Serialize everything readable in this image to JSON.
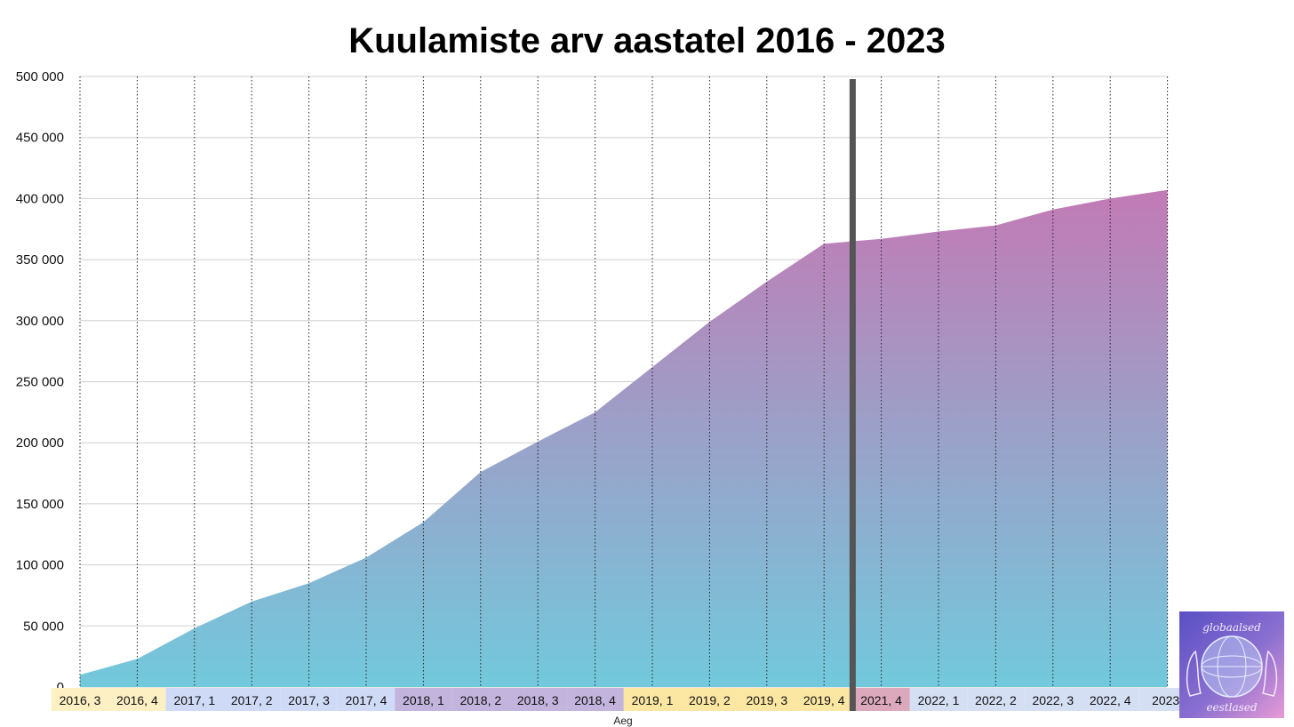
{
  "chart_data": {
    "type": "area",
    "title": "Kuulamiste arv aastatel 2016 - 2023",
    "xlabel": "Aeg",
    "ylabel": "",
    "ylim": [
      0,
      500000
    ],
    "y_ticks": [
      "0",
      "50 000",
      "100 000",
      "150 000",
      "200 000",
      "250 000",
      "300 000",
      "350 000",
      "400 000",
      "450 000",
      "500 000"
    ],
    "categories": [
      "2016, 3",
      "2016, 4",
      "2017, 1",
      "2017, 2",
      "2017, 3",
      "2017, 4",
      "2018, 1",
      "2018, 2",
      "2018, 3",
      "2018, 4",
      "2019, 1",
      "2019, 2",
      "2019, 3",
      "2019, 4",
      "2021, 4",
      "2022, 1",
      "2022, 2",
      "2022, 3",
      "2022, 4",
      "2023,"
    ],
    "values": [
      10000,
      23000,
      48000,
      70000,
      85000,
      106000,
      135000,
      176000,
      201000,
      225000,
      262000,
      299000,
      332000,
      363000,
      367000,
      373000,
      378000,
      391000,
      400000,
      407000
    ],
    "category_colors": [
      "#fdf0c2",
      "#fdf0c2",
      "#cfdaf7",
      "#cfdaf7",
      "#cfdaf7",
      "#cfdaf7",
      "#c2b4dd",
      "#c2b4dd",
      "#c2b4dd",
      "#c2b4dd",
      "#fbe6a2",
      "#fbe6a2",
      "#fbe6a2",
      "#fbe6a2",
      "#dca9bc",
      "#d5dff4",
      "#d5dff4",
      "#d5dff4",
      "#d5dff4",
      "#d5dff4"
    ],
    "fill_gradient": {
      "top": "#c27ab5",
      "bottom": "#72c9dc"
    },
    "grid": true,
    "break_marker_between": [
      "2019, 4",
      "2021, 4"
    ]
  },
  "logo": {
    "text_top": "globaalsed",
    "text_bottom": "eestlased"
  }
}
